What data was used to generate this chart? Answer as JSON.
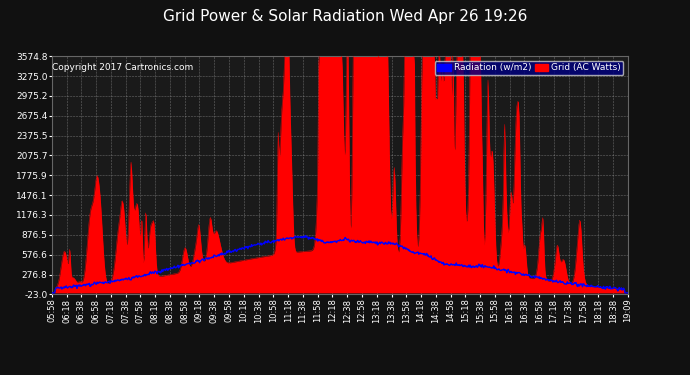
{
  "title": "Grid Power & Solar Radiation Wed Apr 26 19:26",
  "copyright": "Copyright 2017 Cartronics.com",
  "legend_radiation": "Radiation (w/m2)",
  "legend_grid": "Grid (AC Watts)",
  "bg_color": "#111111",
  "plot_bg_color": "#1a1a1a",
  "grid_color": "#aaaaaa",
  "radiation_color": "#0000ff",
  "grid_power_color": "#ff0000",
  "yticks": [
    -23.0,
    276.8,
    576.6,
    876.5,
    1176.3,
    1476.1,
    1775.9,
    2075.7,
    2375.5,
    2675.4,
    2975.2,
    3275.0,
    3574.8
  ],
  "ymin": -23.0,
  "ymax": 3574.8,
  "xtick_labels": [
    "05:58",
    "06:18",
    "06:38",
    "06:58",
    "07:18",
    "07:38",
    "07:58",
    "08:18",
    "08:38",
    "08:58",
    "09:18",
    "09:38",
    "09:58",
    "10:18",
    "10:38",
    "10:58",
    "11:18",
    "11:38",
    "11:58",
    "12:18",
    "12:38",
    "12:58",
    "13:18",
    "13:38",
    "13:58",
    "14:18",
    "14:38",
    "14:58",
    "15:18",
    "15:38",
    "15:58",
    "16:18",
    "16:38",
    "16:58",
    "17:18",
    "17:38",
    "17:58",
    "18:18",
    "18:38",
    "19:09"
  ]
}
